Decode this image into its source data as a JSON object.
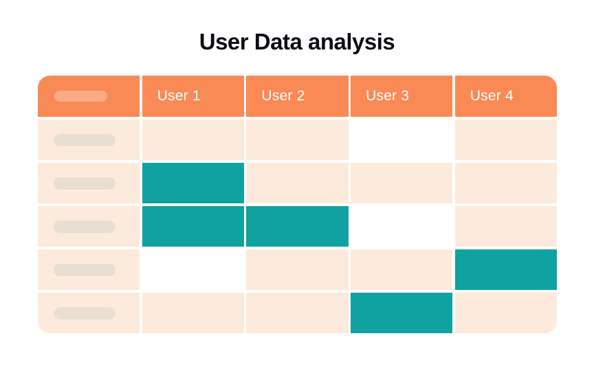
{
  "title": "User Data analysis",
  "colors": {
    "header_orange": "#fa8a55",
    "header_pill_orange": "#fcab87",
    "cell_peach": "#fcebdc",
    "cell_blank": "#ffffff",
    "cell_highlight_teal": "#0fa2a0",
    "row_pill_grey": "#e9ded2",
    "title_text": "#0c0c14",
    "header_text": "#ffffff"
  },
  "chart_data": {
    "type": "table",
    "title": "User Data analysis",
    "columns": [
      "",
      "User 1",
      "User 2",
      "User 3",
      "User 4"
    ],
    "header_first_cell": "skeleton-pill",
    "row_label_cells": "skeleton-pill",
    "cell_states_legend": {
      "peach": "default",
      "white": "blank",
      "teal": "highlighted"
    },
    "rows": [
      {
        "label": "skeleton-pill",
        "cells": [
          "peach",
          "peach",
          "white",
          "peach"
        ]
      },
      {
        "label": "skeleton-pill",
        "cells": [
          "teal",
          "peach",
          "peach",
          "peach"
        ]
      },
      {
        "label": "skeleton-pill",
        "cells": [
          "teal",
          "teal",
          "white",
          "peach"
        ]
      },
      {
        "label": "skeleton-pill",
        "cells": [
          "white",
          "peach",
          "peach",
          "teal"
        ]
      },
      {
        "label": "skeleton-pill",
        "cells": [
          "peach",
          "peach",
          "teal",
          "peach"
        ]
      }
    ]
  }
}
